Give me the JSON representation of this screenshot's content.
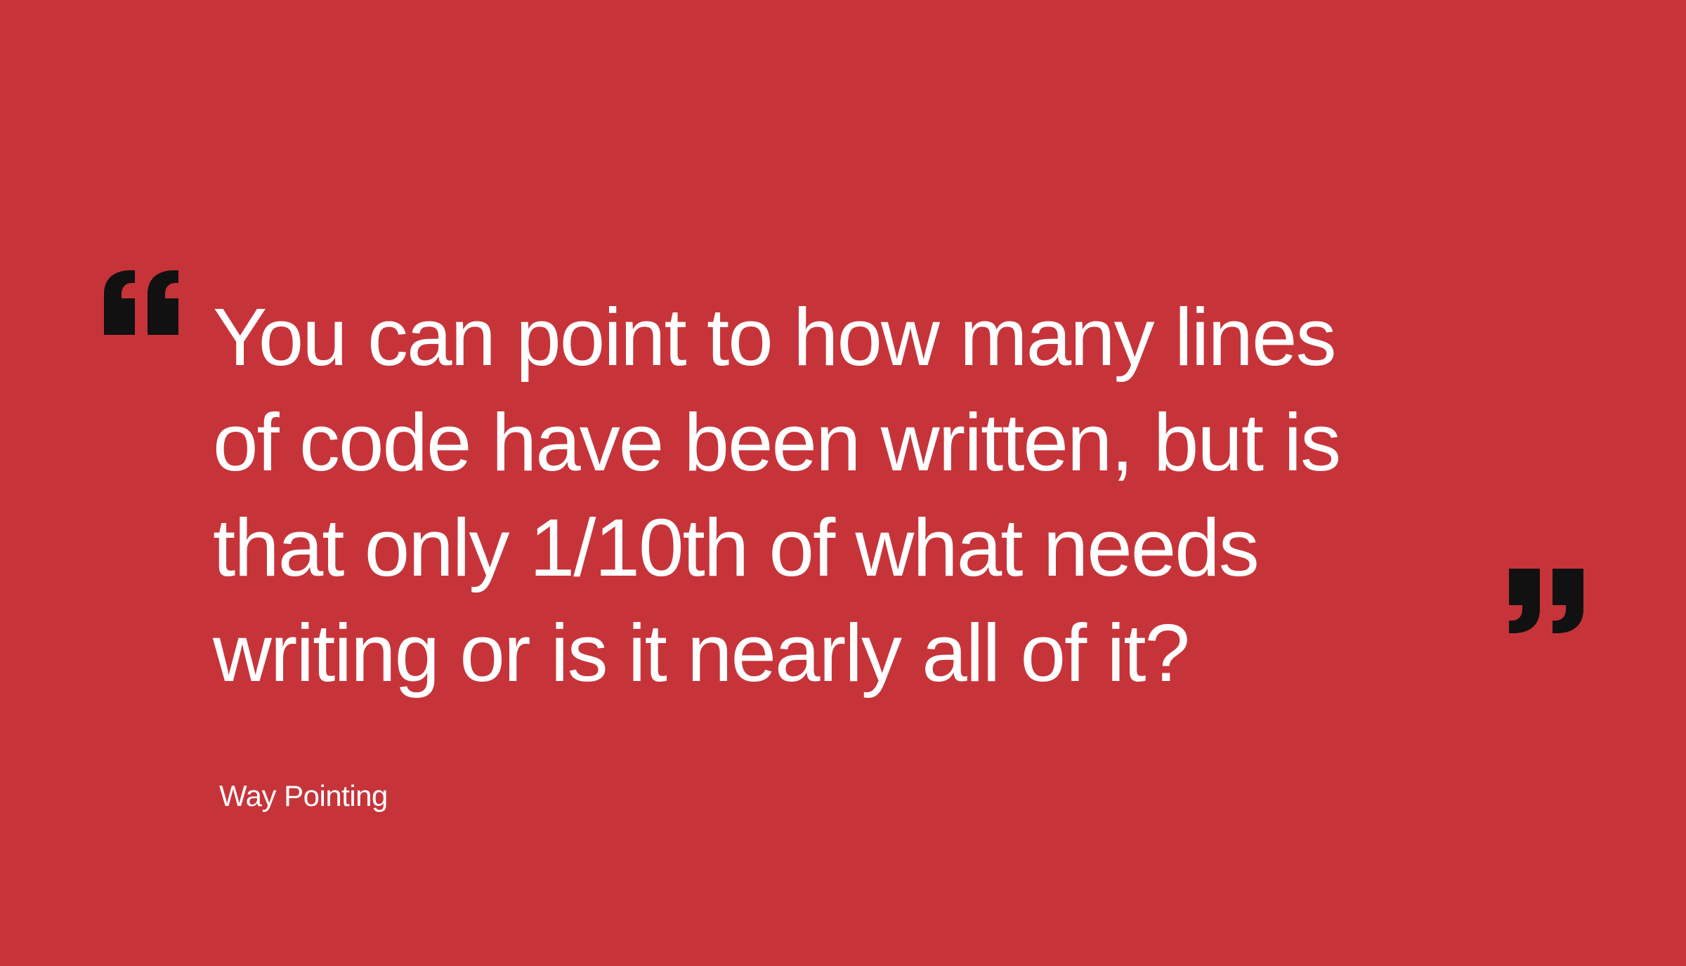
{
  "quote": {
    "lines": [
      "You can point to how many lines",
      "of code have been written, but is",
      "that only 1/10th of what needs",
      "writing or is it nearly all of it?"
    ],
    "author": "Way Pointing"
  },
  "icons": {
    "open": "opening-quote-icon",
    "close": "closing-quote-icon"
  },
  "colors": {
    "background": "#c6343a",
    "text": "#ffffff",
    "quote_marks": "#111111"
  }
}
